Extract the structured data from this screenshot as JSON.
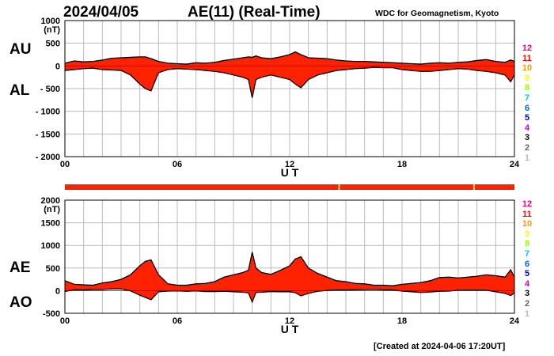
{
  "header": {
    "date": "2024/04/05",
    "title": "AE(11) (Real-Time)",
    "source": "WDC for Geomagnetism, Kyoto"
  },
  "footer": {
    "created": "[Created at 2024-04-06 17:20UT]"
  },
  "side_labels": {
    "top_upper": "AU",
    "top_lower": "AL",
    "bottom_upper": "AE",
    "bottom_lower": "AO"
  },
  "level_keys": [
    {
      "label": "12",
      "color": "#ff0080"
    },
    {
      "label": "11",
      "color": "#ff0000"
    },
    {
      "label": "10",
      "color": "#ff9900"
    },
    {
      "label": "9",
      "color": "#ffff00"
    },
    {
      "label": "8",
      "color": "#99ff00"
    },
    {
      "label": "7",
      "color": "#00cccc"
    },
    {
      "label": "6",
      "color": "#0066ff"
    },
    {
      "label": "5",
      "color": "#0000cc"
    },
    {
      "label": "4",
      "color": "#cc00cc"
    },
    {
      "label": "3",
      "color": "#000000"
    },
    {
      "label": "2",
      "color": "#666666"
    },
    {
      "label": "1",
      "color": "#bbbbbb"
    }
  ],
  "colors": {
    "fill": "#ff2200",
    "line": "#000000",
    "grid": "#bbbbbb",
    "highlight": "#ffcc33"
  },
  "chart_data": [
    {
      "type": "area",
      "title": "AE(11) (Real-Time)",
      "panel": "AU / AL",
      "xlabel": "U T",
      "ylabel": "(nT)",
      "xlim": [
        0,
        24
      ],
      "ylim": [
        -2000,
        1000
      ],
      "x_ticks": [
        "00",
        "06",
        "12",
        "18",
        "24"
      ],
      "y_ticks": [
        "1000",
        "500",
        "0",
        "- 500",
        "- 1000",
        "- 1500",
        "- 2000"
      ],
      "grid": true,
      "x": [
        0,
        0.5,
        1,
        1.5,
        2,
        2.5,
        3,
        3.5,
        4,
        4.3,
        4.6,
        5,
        5.5,
        6,
        6.5,
        7,
        7.5,
        8,
        8.5,
        9,
        9.5,
        9.8,
        10,
        10.2,
        10.5,
        11,
        11.5,
        12,
        12.3,
        12.6,
        13,
        13.5,
        14,
        14.5,
        15,
        15.5,
        16,
        16.5,
        17,
        17.5,
        18,
        18.5,
        19,
        19.5,
        20,
        20.5,
        21,
        21.5,
        22,
        22.5,
        23,
        23.5,
        23.8,
        24
      ],
      "series": [
        {
          "name": "AU",
          "values": [
            60,
            110,
            90,
            100,
            130,
            170,
            180,
            190,
            200,
            200,
            160,
            100,
            60,
            50,
            40,
            70,
            60,
            80,
            120,
            150,
            180,
            200,
            190,
            220,
            180,
            160,
            200,
            250,
            310,
            250,
            180,
            170,
            160,
            130,
            110,
            100,
            100,
            90,
            80,
            70,
            60,
            50,
            40,
            60,
            70,
            60,
            80,
            90,
            120,
            140,
            100,
            80,
            130,
            100
          ]
        },
        {
          "name": "AL",
          "values": [
            -100,
            -80,
            -60,
            -50,
            -80,
            -90,
            -100,
            -200,
            -400,
            -500,
            -550,
            -150,
            -80,
            -60,
            -70,
            -80,
            -100,
            -120,
            -150,
            -200,
            -250,
            -300,
            -700,
            -300,
            -250,
            -200,
            -250,
            -300,
            -400,
            -480,
            -300,
            -200,
            -150,
            -100,
            -80,
            -60,
            -50,
            -30,
            -40,
            -40,
            -80,
            -100,
            -120,
            -120,
            -100,
            -80,
            -60,
            -70,
            -100,
            -120,
            -150,
            -200,
            -350,
            -200
          ]
        }
      ]
    },
    {
      "type": "area",
      "panel": "AE / AO",
      "xlabel": "U T",
      "ylabel": "(nT)",
      "xlim": [
        0,
        24
      ],
      "ylim": [
        -500,
        2000
      ],
      "x_ticks": [
        "00",
        "06",
        "12",
        "18",
        "24"
      ],
      "y_ticks": [
        "2000",
        "1500",
        "1000",
        "500",
        "0",
        "-500"
      ],
      "grid": true,
      "x": [
        0,
        0.5,
        1,
        1.5,
        2,
        2.5,
        3,
        3.5,
        4,
        4.3,
        4.6,
        5,
        5.5,
        6,
        6.5,
        7,
        7.5,
        8,
        8.5,
        9,
        9.5,
        9.8,
        10,
        10.2,
        10.5,
        11,
        11.5,
        12,
        12.3,
        12.6,
        13,
        13.5,
        14,
        14.5,
        15,
        15.5,
        16,
        16.5,
        17,
        17.5,
        18,
        18.5,
        19,
        19.5,
        20,
        20.5,
        21,
        21.5,
        22,
        22.5,
        23,
        23.5,
        23.8,
        24
      ],
      "series": [
        {
          "name": "AE",
          "values": [
            220,
            140,
            130,
            120,
            170,
            200,
            250,
            350,
            550,
            650,
            680,
            350,
            150,
            120,
            120,
            150,
            160,
            200,
            300,
            350,
            400,
            450,
            850,
            500,
            400,
            360,
            450,
            550,
            700,
            750,
            500,
            380,
            300,
            220,
            200,
            160,
            150,
            120,
            120,
            110,
            140,
            160,
            180,
            220,
            290,
            300,
            280,
            300,
            320,
            350,
            330,
            300,
            460,
            300
          ]
        },
        {
          "name": "AO",
          "values": [
            -20,
            20,
            15,
            25,
            25,
            40,
            40,
            -5,
            -100,
            -150,
            -200,
            -25,
            -10,
            -5,
            -15,
            -5,
            -20,
            -20,
            -15,
            -25,
            -35,
            -50,
            -250,
            -40,
            -35,
            -20,
            -25,
            -25,
            -45,
            -115,
            -60,
            -15,
            5,
            15,
            15,
            20,
            25,
            30,
            20,
            15,
            -10,
            -25,
            -40,
            -30,
            -15,
            -10,
            10,
            10,
            10,
            10,
            -25,
            -60,
            -110,
            -50
          ]
        }
      ]
    }
  ]
}
